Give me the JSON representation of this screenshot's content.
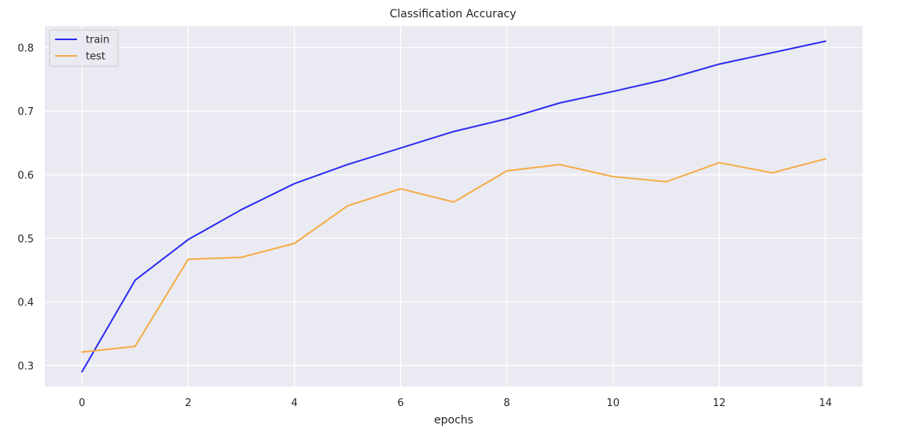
{
  "chart_data": {
    "type": "line",
    "title": "Classification Accuracy",
    "xlabel": "epochs",
    "ylabel": "",
    "x": [
      0,
      1,
      2,
      3,
      4,
      5,
      6,
      7,
      8,
      9,
      10,
      11,
      12,
      13,
      14
    ],
    "xlim": [
      -0.7,
      14.7
    ],
    "ylim": [
      0.267,
      0.834
    ],
    "xticks": [
      0,
      2,
      4,
      6,
      8,
      10,
      12,
      14
    ],
    "yticks": [
      0.3,
      0.4,
      0.5,
      0.6,
      0.7,
      0.8
    ],
    "grid": true,
    "legend_position": "top-left",
    "series": [
      {
        "name": "train",
        "color": "#2b2bf2",
        "values": [
          0.29,
          0.434,
          0.498,
          0.545,
          0.586,
          0.616,
          0.642,
          0.668,
          0.688,
          0.713,
          0.731,
          0.75,
          0.774,
          0.792,
          0.81
        ]
      },
      {
        "name": "test",
        "color": "#f5ac44",
        "values": [
          0.321,
          0.33,
          0.467,
          0.47,
          0.492,
          0.551,
          0.578,
          0.557,
          0.606,
          0.616,
          0.597,
          0.589,
          0.619,
          0.603,
          0.625
        ]
      }
    ]
  }
}
